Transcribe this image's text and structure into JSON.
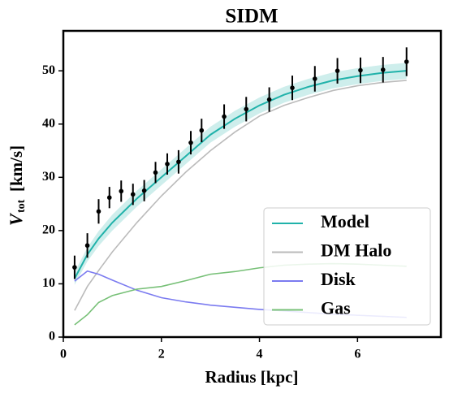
{
  "chart_data": {
    "type": "line",
    "title": "SIDM",
    "x_label": "Radius [kpc]",
    "y_label": {
      "symbol": "V",
      "subscript": "tot",
      "unit": "[km/s]"
    },
    "xlim": [
      0,
      7.7
    ],
    "ylim": [
      0,
      57.5
    ],
    "xticks": [
      0,
      2,
      4,
      6
    ],
    "yticks": [
      0,
      10,
      20,
      30,
      40,
      50
    ],
    "legend": "lower right",
    "x": [
      0.23,
      0.49,
      0.72,
      1,
      1.5,
      2,
      2.5,
      3,
      3.5,
      4,
      4.5,
      5,
      5.5,
      6,
      6.5,
      7
    ],
    "series": [
      {
        "name": "Model",
        "color": "#20b2aa",
        "values": [
          11,
          15.5,
          18.5,
          21.5,
          26,
          30,
          34,
          38,
          41,
          43.5,
          45.5,
          47,
          48.2,
          49,
          49.6,
          50
        ],
        "band_lower": [
          9.8,
          14.2,
          17.1,
          20,
          24.5,
          28.5,
          32.5,
          36.5,
          39.5,
          42,
          44,
          45.5,
          46.7,
          47.5,
          48.1,
          48.5
        ],
        "band_upper": [
          12.2,
          16.8,
          19.9,
          23,
          27.5,
          31.5,
          35.5,
          39.5,
          42.5,
          45,
          47,
          48.5,
          49.7,
          50.5,
          51.1,
          51.5
        ]
      },
      {
        "name": "DM Halo",
        "color": "#bbbbbb",
        "values": [
          5,
          9.5,
          12.5,
          16,
          21.5,
          26.5,
          31,
          35,
          38.5,
          41.5,
          43.5,
          45,
          46.3,
          47.2,
          47.8,
          48.2
        ]
      },
      {
        "name": "Disk",
        "color": "#7b7bf0",
        "values": [
          10.5,
          12.4,
          11.8,
          10.7,
          8.8,
          7.4,
          6.6,
          6.0,
          5.6,
          5.2,
          4.9,
          4.6,
          4.3,
          4.1,
          3.9,
          3.7
        ]
      },
      {
        "name": "Gas",
        "color": "#77c077",
        "values": [
          2.3,
          4.2,
          6.5,
          7.8,
          9.0,
          9.5,
          10.6,
          11.8,
          12.3,
          13.0,
          13.5,
          13.7,
          13.8,
          13.7,
          13.5,
          13.3
        ]
      }
    ],
    "points": {
      "color": "#000000",
      "x": [
        0.23,
        0.49,
        0.72,
        0.94,
        1.18,
        1.42,
        1.65,
        1.88,
        2.12,
        2.35,
        2.6,
        2.82,
        3.28,
        3.73,
        4.2,
        4.67,
        5.13,
        5.59,
        6.06,
        6.52,
        7.0
      ],
      "values": [
        13.1,
        17.2,
        23.6,
        26.2,
        27.4,
        26.8,
        27.5,
        30.9,
        32.5,
        32.9,
        36.5,
        38.8,
        41.4,
        42.8,
        44.6,
        46.8,
        48.5,
        50.0,
        50.1,
        50.2,
        51.7
      ],
      "errors": [
        2.2,
        2.3,
        2.3,
        2.0,
        2.0,
        2.0,
        2.0,
        2.0,
        2.0,
        2.2,
        2.2,
        2.2,
        2.3,
        2.3,
        2.3,
        2.3,
        2.4,
        2.4,
        2.4,
        2.4,
        2.7
      ]
    }
  }
}
